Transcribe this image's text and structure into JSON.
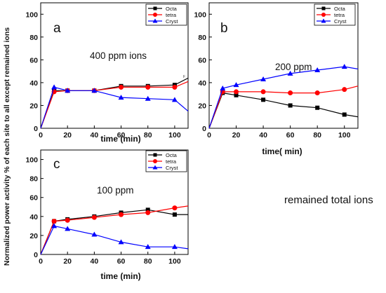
{
  "figure": {
    "ylabel": "Normalized power activity  % of  each site to all except remained ions",
    "side_note": "remained total ions"
  },
  "legend_labels": [
    "Octa",
    "tetra",
    "Cryst"
  ],
  "colors": {
    "Octa": "#000000",
    "tetra": "#ff0000",
    "Cryst": "#0000ff"
  },
  "chart_data": [
    {
      "type": "line",
      "panel_label": "a",
      "annotation": "400 ppm ions",
      "small_mark": "F",
      "xlabel": "time (min)",
      "x_ticks": [
        0,
        20,
        40,
        60,
        80,
        100
      ],
      "y_ticks": [
        0,
        20,
        40,
        60,
        80,
        100
      ],
      "xlim": [
        0,
        110
      ],
      "ylim": [
        0,
        110
      ],
      "legend_position": "top-right",
      "series": [
        {
          "name": "Octa",
          "marker": "square",
          "x": [
            0,
            10,
            20,
            40,
            60,
            80,
            100,
            110
          ],
          "y": [
            0,
            33,
            33,
            33,
            37,
            37,
            38,
            44
          ]
        },
        {
          "name": "tetra",
          "marker": "circle",
          "x": [
            0,
            10,
            20,
            40,
            60,
            80,
            100,
            110
          ],
          "y": [
            0,
            32,
            33,
            33,
            36,
            36,
            36,
            41
          ]
        },
        {
          "name": "Cryst",
          "marker": "triangle",
          "x": [
            0,
            10,
            20,
            40,
            60,
            80,
            100,
            110
          ],
          "y": [
            0,
            36,
            33,
            33,
            27,
            26,
            25,
            15
          ]
        }
      ]
    },
    {
      "type": "line",
      "panel_label": "b",
      "annotation": "200 ppm",
      "xlabel": "time( min)",
      "x_ticks": [
        0,
        20,
        40,
        60,
        80,
        100
      ],
      "y_ticks": [
        0,
        20,
        40,
        60,
        80,
        100
      ],
      "xlim": [
        0,
        110
      ],
      "ylim": [
        0,
        110
      ],
      "legend_position": "top-right",
      "series": [
        {
          "name": "Octa",
          "marker": "square",
          "x": [
            0,
            10,
            20,
            40,
            60,
            80,
            100,
            110
          ],
          "y": [
            0,
            31,
            29,
            25,
            20,
            18,
            12,
            10
          ]
        },
        {
          "name": "tetra",
          "marker": "circle",
          "x": [
            0,
            10,
            20,
            40,
            60,
            80,
            100,
            110
          ],
          "y": [
            0,
            32,
            32,
            32,
            31,
            31,
            34,
            37
          ]
        },
        {
          "name": "Cryst",
          "marker": "triangle",
          "x": [
            0,
            10,
            20,
            40,
            60,
            80,
            100,
            110
          ],
          "y": [
            0,
            35,
            38,
            43,
            48,
            51,
            54,
            52
          ]
        }
      ]
    },
    {
      "type": "line",
      "panel_label": "c",
      "annotation": "100 ppm",
      "xlabel": "time (min)",
      "x_ticks": [
        0,
        20,
        40,
        60,
        80,
        100
      ],
      "y_ticks": [
        0,
        20,
        40,
        60,
        80,
        100
      ],
      "xlim": [
        0,
        110
      ],
      "ylim": [
        0,
        110
      ],
      "legend_position": "top-right",
      "series": [
        {
          "name": "Octa",
          "marker": "square",
          "x": [
            0,
            10,
            20,
            40,
            60,
            80,
            100,
            110
          ],
          "y": [
            0,
            35,
            37,
            40,
            44,
            47,
            42,
            42
          ]
        },
        {
          "name": "tetra",
          "marker": "circle",
          "x": [
            0,
            10,
            20,
            40,
            60,
            80,
            100,
            110
          ],
          "y": [
            0,
            35,
            36,
            39,
            42,
            44,
            49,
            51
          ]
        },
        {
          "name": "Cryst",
          "marker": "triangle",
          "x": [
            0,
            10,
            20,
            40,
            60,
            80,
            100,
            110
          ],
          "y": [
            0,
            30,
            27,
            21,
            13,
            8,
            8,
            6
          ]
        }
      ]
    }
  ]
}
